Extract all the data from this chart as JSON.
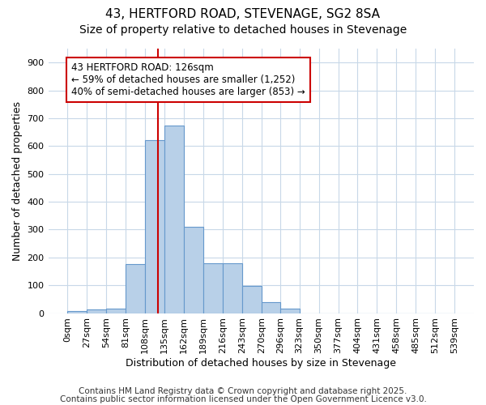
{
  "title_line1": "43, HERTFORD ROAD, STEVENAGE, SG2 8SA",
  "title_line2": "Size of property relative to detached houses in Stevenage",
  "xlabel": "Distribution of detached houses by size in Stevenage",
  "ylabel": "Number of detached properties",
  "bin_edges": [
    0,
    27,
    54,
    81,
    108,
    135,
    162,
    189,
    216,
    243,
    270,
    296,
    323,
    350,
    377,
    404,
    431,
    458,
    485,
    512,
    539
  ],
  "bar_heights": [
    7,
    12,
    15,
    175,
    620,
    675,
    310,
    180,
    178,
    97,
    40,
    15,
    0,
    0,
    0,
    0,
    0,
    0,
    0,
    0
  ],
  "bar_color": "#b8d0e8",
  "bar_edge_color": "#6699cc",
  "property_size": 126,
  "vline_color": "#cc0000",
  "annotation_line1": "43 HERTFORD ROAD: 126sqm",
  "annotation_line2": "← 59% of detached houses are smaller (1,252)",
  "annotation_line3": "40% of semi-detached houses are larger (853) →",
  "annotation_box_color": "#ffffff",
  "annotation_box_edge_color": "#cc0000",
  "ylim": [
    0,
    950
  ],
  "yticks": [
    0,
    100,
    200,
    300,
    400,
    500,
    600,
    700,
    800,
    900
  ],
  "footnote1": "Contains HM Land Registry data © Crown copyright and database right 2025.",
  "footnote2": "Contains public sector information licensed under the Open Government Licence v3.0.",
  "fig_background_color": "#ffffff",
  "plot_bg_color": "#ffffff",
  "grid_color": "#c8d8e8",
  "title_fontsize": 11,
  "subtitle_fontsize": 10,
  "axis_label_fontsize": 9,
  "tick_fontsize": 8,
  "annotation_fontsize": 8.5,
  "footnote_fontsize": 7.5
}
